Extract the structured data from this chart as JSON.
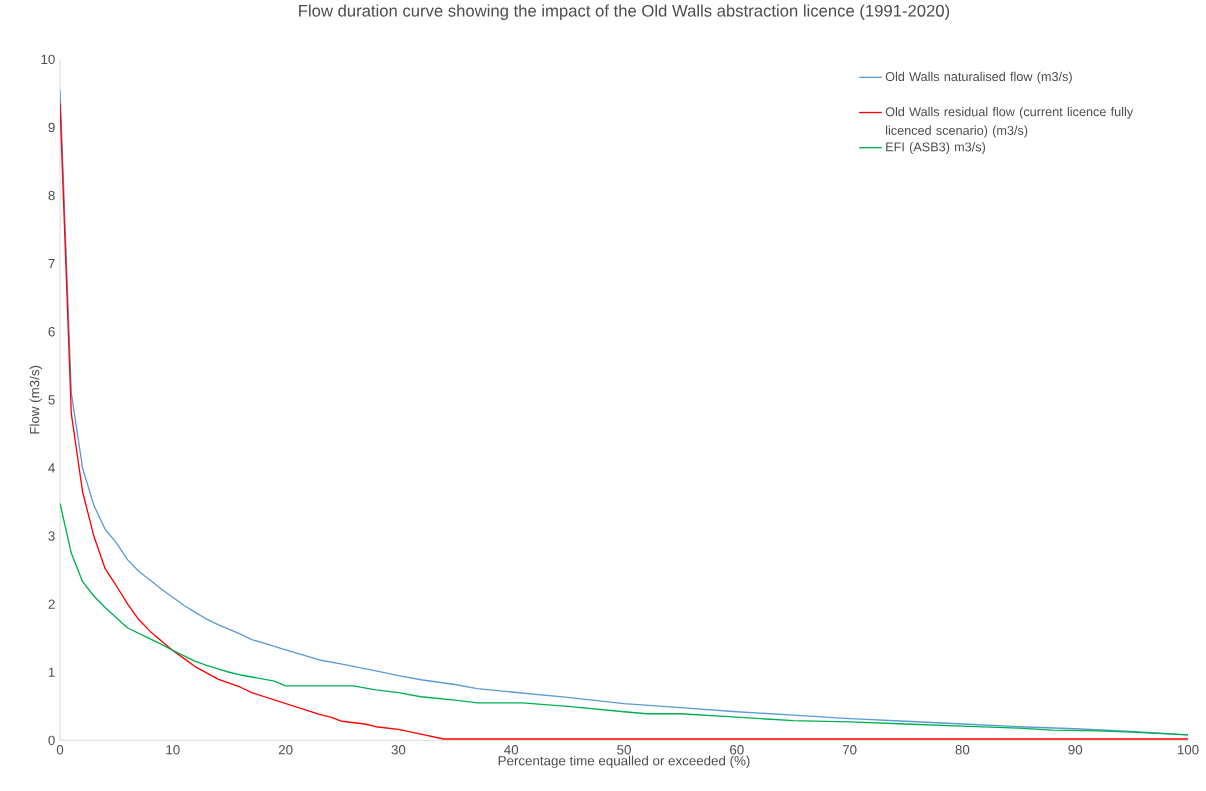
{
  "chart_data": {
    "type": "line",
    "title": "Flow duration curve showing the impact of the Old Walls abstraction licence (1991-2020)",
    "xlabel": "Percentage time equalled or exceeded (%)",
    "ylabel": "Flow (m3/s)",
    "xlim": [
      0,
      100
    ],
    "ylim": [
      0,
      10
    ],
    "xticks": [
      0,
      10,
      20,
      30,
      40,
      50,
      60,
      70,
      80,
      90,
      100
    ],
    "yticks": [
      0,
      1,
      2,
      3,
      4,
      5,
      6,
      7,
      8,
      9,
      10
    ],
    "legend": "top right",
    "marker": "none",
    "line_style": "solid",
    "series": [
      {
        "name": "Old Walls naturalised flow (m3/s)",
        "color": "#5b9bd5",
        "x": [
          0,
          1,
          2,
          3,
          4,
          5,
          6,
          7,
          8,
          9,
          10,
          11,
          12,
          13,
          14,
          15,
          16,
          17,
          18,
          20,
          23,
          25,
          28,
          30,
          32,
          35,
          37,
          40,
          45,
          50,
          55,
          60,
          65,
          70,
          75,
          80,
          85,
          90,
          95,
          100
        ],
        "values": [
          9.55,
          5.1,
          4.0,
          3.45,
          3.1,
          2.9,
          2.65,
          2.48,
          2.35,
          2.22,
          2.1,
          1.98,
          1.88,
          1.78,
          1.7,
          1.63,
          1.56,
          1.48,
          1.43,
          1.33,
          1.18,
          1.12,
          1.02,
          0.95,
          0.89,
          0.82,
          0.76,
          0.71,
          0.63,
          0.54,
          0.48,
          0.42,
          0.37,
          0.32,
          0.28,
          0.24,
          0.2,
          0.17,
          0.13,
          0.08
        ]
      },
      {
        "name": "Old Walls residual flow (current licence fully licenced scenario) (m3/s)",
        "color": "#ff0000",
        "x": [
          0,
          1,
          2,
          3,
          4,
          5,
          6,
          7,
          8,
          9,
          10,
          11,
          12,
          13,
          14,
          15,
          16,
          17,
          20,
          23,
          24,
          25,
          27,
          28,
          30,
          32,
          34,
          100
        ],
        "values": [
          9.35,
          4.8,
          3.65,
          3.0,
          2.52,
          2.27,
          2.0,
          1.77,
          1.6,
          1.46,
          1.32,
          1.2,
          1.08,
          0.99,
          0.9,
          0.84,
          0.78,
          0.7,
          0.54,
          0.38,
          0.34,
          0.28,
          0.24,
          0.2,
          0.16,
          0.09,
          0.02,
          0.02
        ]
      },
      {
        "name": "EFI (ASB3) m3/s)",
        "color": "#00b050",
        "x": [
          0,
          1,
          2,
          3,
          4,
          5,
          6,
          7,
          8,
          9,
          10,
          11,
          12,
          13,
          14,
          15,
          16,
          17,
          19,
          20,
          22,
          26,
          28,
          30,
          32,
          35,
          37,
          41,
          45,
          50,
          52,
          55,
          60,
          65,
          70,
          75,
          80,
          85,
          88,
          92,
          95,
          100
        ],
        "values": [
          3.48,
          2.75,
          2.33,
          2.12,
          1.95,
          1.8,
          1.65,
          1.57,
          1.49,
          1.41,
          1.32,
          1.24,
          1.16,
          1.1,
          1.05,
          1.0,
          0.96,
          0.93,
          0.87,
          0.8,
          0.8,
          0.8,
          0.74,
          0.7,
          0.64,
          0.59,
          0.55,
          0.55,
          0.5,
          0.42,
          0.39,
          0.39,
          0.34,
          0.29,
          0.27,
          0.24,
          0.21,
          0.18,
          0.15,
          0.14,
          0.12,
          0.08
        ]
      }
    ]
  }
}
